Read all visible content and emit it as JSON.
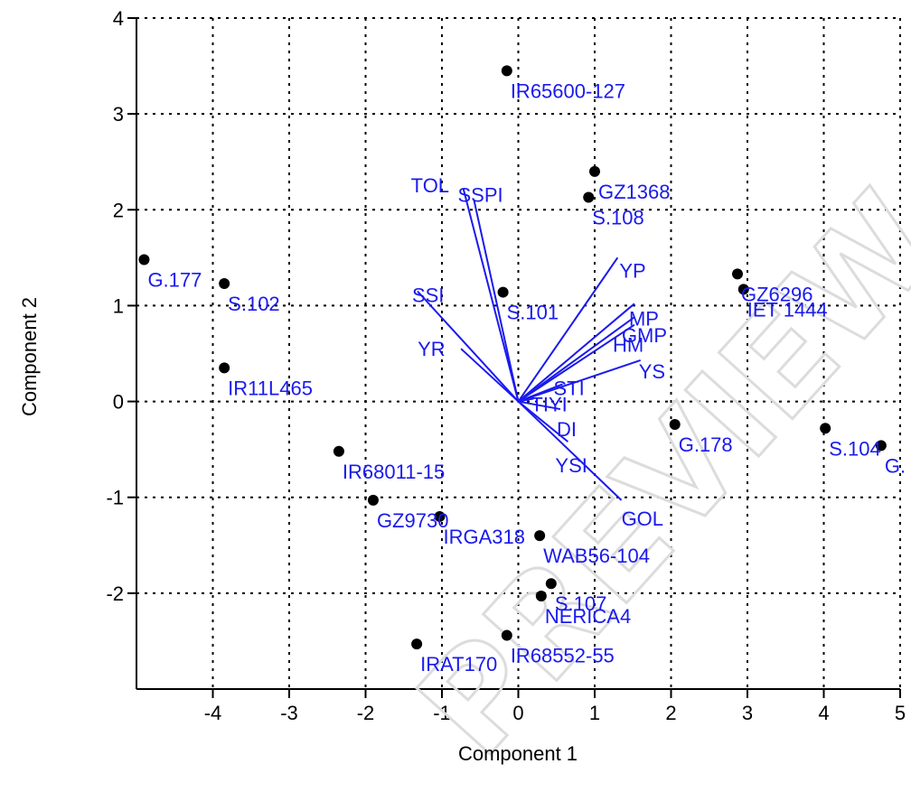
{
  "chart_data": {
    "type": "scatter",
    "xlabel": "Component 1",
    "ylabel": "Component 2",
    "xlim": [
      -5,
      5
    ],
    "ylim": [
      -3,
      4
    ],
    "x_ticks": [
      -4,
      -3,
      -2,
      -1,
      0,
      1,
      2,
      3,
      4,
      5
    ],
    "y_ticks": [
      -2,
      -1,
      0,
      1,
      2,
      3,
      4
    ],
    "grid": true,
    "points": [
      {
        "label": "IR65600-127",
        "x": -0.15,
        "y": 3.45
      },
      {
        "label": "GZ1368",
        "x": 1.0,
        "y": 2.4
      },
      {
        "label": "S.108",
        "x": 0.92,
        "y": 2.13
      },
      {
        "label": "G.177",
        "x": -4.9,
        "y": 1.48
      },
      {
        "label": "S.102",
        "x": -3.85,
        "y": 1.23
      },
      {
        "label": "S.101",
        "x": -0.2,
        "y": 1.14
      },
      {
        "label": "GZ6296",
        "x": 2.87,
        "y": 1.33
      },
      {
        "label": "IET 1444",
        "x": 2.95,
        "y": 1.17
      },
      {
        "label": "IR11L465",
        "x": -3.85,
        "y": 0.35
      },
      {
        "label": "G.178",
        "x": 2.05,
        "y": -0.24
      },
      {
        "label": "S.104",
        "x": 4.02,
        "y": -0.28
      },
      {
        "label": "G.",
        "x": 4.75,
        "y": -0.46
      },
      {
        "label": "IR68011-15",
        "x": -2.35,
        "y": -0.52
      },
      {
        "label": "GZ9730",
        "x": -1.9,
        "y": -1.03
      },
      {
        "label": "IRGA318",
        "x": -1.03,
        "y": -1.2
      },
      {
        "label": "WAB56-104",
        "x": 0.28,
        "y": -1.4
      },
      {
        "label": "S.107",
        "x": 0.43,
        "y": -1.9
      },
      {
        "label": "NERICA4",
        "x": 0.3,
        "y": -2.03
      },
      {
        "label": "IR68552-55",
        "x": -0.15,
        "y": -2.44
      },
      {
        "label": "IRAT170",
        "x": -1.33,
        "y": -2.53
      }
    ],
    "vectors": [
      {
        "label": "TOL",
        "x": -0.72,
        "y": 2.22
      },
      {
        "label": "SSPI",
        "x": -0.58,
        "y": 2.1
      },
      {
        "label": "SSI",
        "x": -1.32,
        "y": 1.15
      },
      {
        "label": "YR",
        "x": -0.75,
        "y": 0.55
      },
      {
        "label": "YP",
        "x": 1.3,
        "y": 1.5
      },
      {
        "label": "MP",
        "x": 1.52,
        "y": 1.02
      },
      {
        "label": "GMP",
        "x": 1.52,
        "y": 0.88
      },
      {
        "label": "HM",
        "x": 1.52,
        "y": 0.8
      },
      {
        "label": "YS",
        "x": 1.6,
        "y": 0.43
      },
      {
        "label": "STI",
        "x": 0.58,
        "y": 0.18
      },
      {
        "label": "TIYI",
        "x": 0.2,
        "y": 0.03
      },
      {
        "label": "DI",
        "x": 0.55,
        "y": -0.08
      },
      {
        "label": "YSI",
        "x": 0.65,
        "y": -0.42
      },
      {
        "label": "GOL",
        "x": 1.35,
        "y": -1.03
      }
    ]
  },
  "colors": {
    "points": "#000000",
    "vectors": "#1a1aee",
    "labels": "#1a1aee",
    "grid": "#000000",
    "watermark": "#dcdcdc"
  },
  "watermark": "PREVIEW"
}
